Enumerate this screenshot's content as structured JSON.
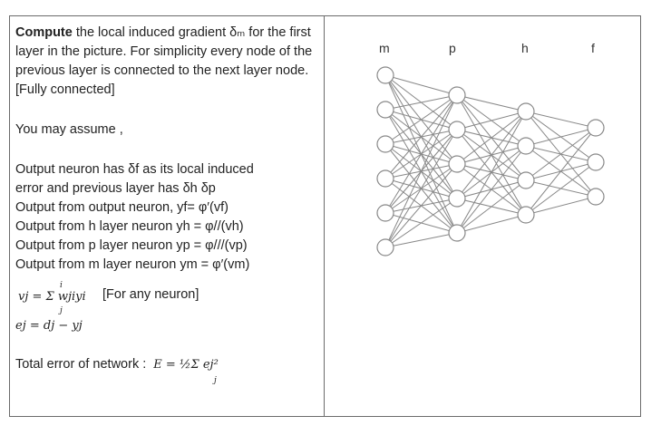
{
  "question": {
    "lead_bold": "Compute",
    "lead_rest": "the local induced gradient δₘ for the first layer in the picture. For simplicity every node of the previous layer is connected to the next layer node. [Fully connected]",
    "assume": "You may assume ,",
    "lines": [
      "Output neuron has δf  as its local induced",
      "error and previous layer has δh δp",
      "Output from output neuron, yf= φ′(vf)",
      "Output from h layer neuron yh = φ//(vh)",
      "Output from p layer neuron yp = φ///(vp)",
      "Output from m layer neuron ym = φ′(vm)"
    ],
    "eq_vj": "vj  =  Σ wjiyi",
    "eq_vj_note": "[For any neuron]",
    "eq_vj_upper": "i",
    "eq_vj_lower": "j",
    "eq_ej": "ej = dj − yj",
    "total_error_label": "Total error of network :",
    "total_error_formula": "E  =  ½Σ ej²",
    "total_error_lower": "j"
  },
  "network": {
    "layer_labels": [
      "m",
      "p",
      "h",
      "f"
    ],
    "layer_counts": [
      6,
      5,
      4,
      3
    ],
    "node_color": "#ffffff",
    "stroke_color": "#888888"
  }
}
